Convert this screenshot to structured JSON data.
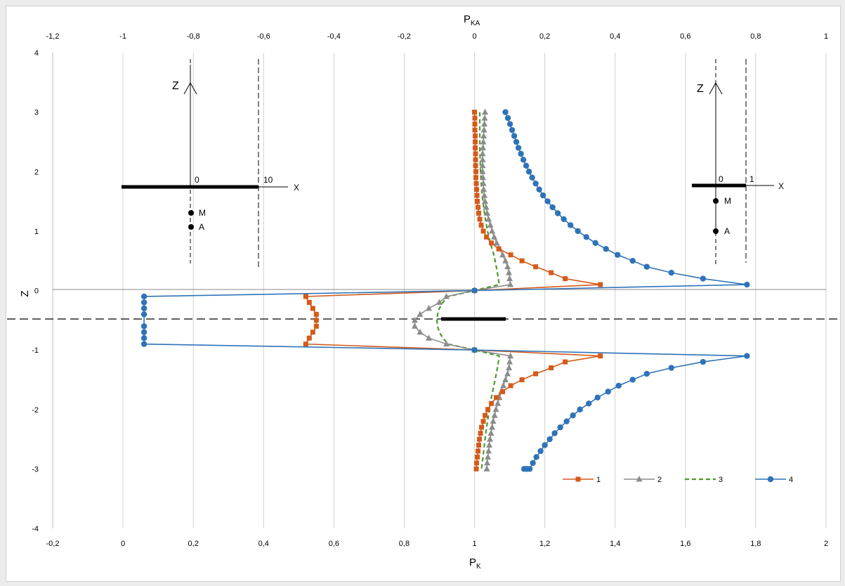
{
  "chart_data": {
    "type": "line",
    "x_bottom": {
      "label": "P",
      "label_sub": "K",
      "range": [
        -0.2,
        2.0
      ],
      "ticks": [
        "-0,2",
        "0",
        "0,2",
        "0,4",
        "0,6",
        "0,8",
        "1",
        "1,2",
        "1,4",
        "1,6",
        "1,8",
        "2"
      ]
    },
    "x_top": {
      "label": "P",
      "label_sub": "KA",
      "range": [
        -1.2,
        1.0
      ],
      "ticks": [
        "-1,2",
        "-1",
        "-0,8",
        "-0,6",
        "-0,4",
        "-0,2",
        "0",
        "0,2",
        "0,4",
        "0,6",
        "0,8",
        "1"
      ]
    },
    "y": {
      "label": "Z",
      "range": [
        -4,
        4
      ],
      "ticks": [
        "-4",
        "-3",
        "-2",
        "-1",
        "0",
        "1",
        "2",
        "3",
        "4"
      ]
    },
    "grid": "vertical",
    "legend_position": "bottom-right",
    "colors": {
      "s1": "#d45a1b",
      "s2": "#8c8c8c",
      "s3": "#4d9a2a",
      "s4": "#2e73b8"
    },
    "series": [
      {
        "name": "1",
        "marker": "square",
        "axis": "bottom",
        "points": [
          [
            1.0,
            3.0
          ],
          [
            1.001,
            2.9
          ],
          [
            1.001,
            2.8
          ],
          [
            1.001,
            2.7
          ],
          [
            1.002,
            2.6
          ],
          [
            1.002,
            2.5
          ],
          [
            1.002,
            2.4
          ],
          [
            1.003,
            2.3
          ],
          [
            1.003,
            2.2
          ],
          [
            1.003,
            2.1
          ],
          [
            1.004,
            2.0
          ],
          [
            1.004,
            1.9
          ],
          [
            1.005,
            1.8
          ],
          [
            1.006,
            1.7
          ],
          [
            1.007,
            1.6
          ],
          [
            1.008,
            1.5
          ],
          [
            1.01,
            1.4
          ],
          [
            1.012,
            1.3
          ],
          [
            1.015,
            1.2
          ],
          [
            1.019,
            1.1
          ],
          [
            1.025,
            1.0
          ],
          [
            1.034,
            0.9
          ],
          [
            1.048,
            0.8
          ],
          [
            1.069,
            0.7
          ],
          [
            1.103,
            0.6
          ],
          [
            1.135,
            0.5
          ],
          [
            1.174,
            0.4
          ],
          [
            1.218,
            0.3
          ],
          [
            1.258,
            0.2
          ],
          [
            1.358,
            0.1
          ],
          [
            1.0,
            0.0
          ],
          [
            0.52,
            -0.1
          ],
          [
            0.53,
            -0.2
          ],
          [
            0.54,
            -0.3
          ],
          [
            0.55,
            -0.4
          ],
          [
            0.55,
            -0.5
          ],
          [
            0.55,
            -0.6
          ],
          [
            0.54,
            -0.7
          ],
          [
            0.53,
            -0.8
          ],
          [
            0.52,
            -0.9
          ],
          [
            1.0,
            -1.0
          ],
          [
            1.358,
            -1.1
          ],
          [
            1.258,
            -1.2
          ],
          [
            1.218,
            -1.3
          ],
          [
            1.174,
            -1.4
          ],
          [
            1.135,
            -1.5
          ],
          [
            1.103,
            -1.6
          ],
          [
            1.08,
            -1.7
          ],
          [
            1.062,
            -1.8
          ],
          [
            1.048,
            -1.9
          ],
          [
            1.038,
            -2.0
          ],
          [
            1.03,
            -2.1
          ],
          [
            1.025,
            -2.2
          ],
          [
            1.02,
            -2.3
          ],
          [
            1.017,
            -2.4
          ],
          [
            1.014,
            -2.5
          ],
          [
            1.012,
            -2.6
          ],
          [
            1.01,
            -2.7
          ],
          [
            1.008,
            -2.8
          ],
          [
            1.006,
            -2.9
          ],
          [
            1.005,
            -3.0
          ]
        ]
      },
      {
        "name": "2",
        "marker": "triangle",
        "axis": "bottom",
        "points": [
          [
            1.03,
            3.0
          ],
          [
            1.029,
            2.9
          ],
          [
            1.028,
            2.8
          ],
          [
            1.027,
            2.7
          ],
          [
            1.026,
            2.6
          ],
          [
            1.025,
            2.5
          ],
          [
            1.024,
            2.4
          ],
          [
            1.023,
            2.3
          ],
          [
            1.023,
            2.2
          ],
          [
            1.023,
            2.1
          ],
          [
            1.023,
            2.0
          ],
          [
            1.024,
            1.9
          ],
          [
            1.025,
            1.8
          ],
          [
            1.026,
            1.7
          ],
          [
            1.028,
            1.6
          ],
          [
            1.03,
            1.5
          ],
          [
            1.033,
            1.4
          ],
          [
            1.036,
            1.3
          ],
          [
            1.04,
            1.2
          ],
          [
            1.045,
            1.1
          ],
          [
            1.05,
            1.0
          ],
          [
            1.056,
            0.9
          ],
          [
            1.063,
            0.8
          ],
          [
            1.072,
            0.7
          ],
          [
            1.08,
            0.6
          ],
          [
            1.088,
            0.5
          ],
          [
            1.094,
            0.4
          ],
          [
            1.098,
            0.3
          ],
          [
            1.1,
            0.2
          ],
          [
            1.102,
            0.1
          ],
          [
            1.0,
            0.0
          ],
          [
            0.92,
            -0.1
          ],
          [
            0.9,
            -0.2
          ],
          [
            0.87,
            -0.3
          ],
          [
            0.845,
            -0.4
          ],
          [
            0.83,
            -0.5
          ],
          [
            0.83,
            -0.6
          ],
          [
            0.845,
            -0.7
          ],
          [
            0.87,
            -0.8
          ],
          [
            0.92,
            -0.9
          ],
          [
            1.0,
            -1.0
          ],
          [
            1.102,
            -1.1
          ],
          [
            1.1,
            -1.2
          ],
          [
            1.098,
            -1.3
          ],
          [
            1.094,
            -1.4
          ],
          [
            1.088,
            -1.5
          ],
          [
            1.082,
            -1.6
          ],
          [
            1.076,
            -1.7
          ],
          [
            1.071,
            -1.8
          ],
          [
            1.066,
            -1.9
          ],
          [
            1.061,
            -2.0
          ],
          [
            1.057,
            -2.1
          ],
          [
            1.053,
            -2.2
          ],
          [
            1.05,
            -2.3
          ],
          [
            1.047,
            -2.4
          ],
          [
            1.044,
            -2.5
          ],
          [
            1.042,
            -2.6
          ],
          [
            1.04,
            -2.7
          ],
          [
            1.038,
            -2.8
          ],
          [
            1.036,
            -2.9
          ],
          [
            1.035,
            -3.0
          ]
        ]
      },
      {
        "name": "3",
        "marker": "dash",
        "axis": "bottom",
        "points": [
          [
            1.015,
            3.0
          ],
          [
            1.015,
            2.8
          ],
          [
            1.015,
            2.6
          ],
          [
            1.015,
            2.4
          ],
          [
            1.016,
            2.2
          ],
          [
            1.017,
            2.0
          ],
          [
            1.019,
            1.8
          ],
          [
            1.022,
            1.6
          ],
          [
            1.026,
            1.4
          ],
          [
            1.031,
            1.2
          ],
          [
            1.037,
            1.0
          ],
          [
            1.045,
            0.8
          ],
          [
            1.055,
            0.6
          ],
          [
            1.062,
            0.4
          ],
          [
            1.068,
            0.2
          ],
          [
            1.07,
            0.1
          ],
          [
            1.0,
            0.0
          ],
          [
            0.925,
            -0.1
          ],
          [
            0.91,
            -0.2
          ],
          [
            0.9,
            -0.3
          ],
          [
            0.895,
            -0.4
          ],
          [
            0.893,
            -0.5
          ],
          [
            0.895,
            -0.6
          ],
          [
            0.9,
            -0.7
          ],
          [
            0.91,
            -0.8
          ],
          [
            0.925,
            -0.9
          ],
          [
            1.0,
            -1.0
          ],
          [
            1.07,
            -1.1
          ],
          [
            1.068,
            -1.2
          ],
          [
            1.062,
            -1.4
          ],
          [
            1.055,
            -1.6
          ],
          [
            1.048,
            -1.8
          ],
          [
            1.042,
            -2.0
          ],
          [
            1.037,
            -2.2
          ],
          [
            1.032,
            -2.4
          ],
          [
            1.028,
            -2.6
          ],
          [
            1.024,
            -2.8
          ],
          [
            1.02,
            -3.0
          ]
        ]
      },
      {
        "name": "4",
        "marker": "circle",
        "axis": "bottom",
        "points": [
          [
            1.088,
            3.0
          ],
          [
            1.095,
            2.9
          ],
          [
            1.101,
            2.8
          ],
          [
            1.107,
            2.7
          ],
          [
            1.113,
            2.6
          ],
          [
            1.119,
            2.5
          ],
          [
            1.125,
            2.4
          ],
          [
            1.132,
            2.3
          ],
          [
            1.139,
            2.2
          ],
          [
            1.147,
            2.1
          ],
          [
            1.155,
            2.0
          ],
          [
            1.164,
            1.9
          ],
          [
            1.174,
            1.8
          ],
          [
            1.184,
            1.7
          ],
          [
            1.195,
            1.6
          ],
          [
            1.208,
            1.5
          ],
          [
            1.222,
            1.4
          ],
          [
            1.237,
            1.3
          ],
          [
            1.254,
            1.2
          ],
          [
            1.273,
            1.1
          ],
          [
            1.294,
            1.0
          ],
          [
            1.318,
            0.9
          ],
          [
            1.344,
            0.8
          ],
          [
            1.374,
            0.7
          ],
          [
            1.407,
            0.6
          ],
          [
            1.45,
            0.5
          ],
          [
            1.49,
            0.4
          ],
          [
            1.56,
            0.3
          ],
          [
            1.65,
            0.2
          ],
          [
            1.775,
            0.1
          ],
          [
            1.0,
            0.0
          ],
          [
            0.06,
            -0.1
          ],
          [
            0.06,
            -0.2
          ],
          [
            0.06,
            -0.3
          ],
          [
            0.06,
            -0.4
          ],
          [
            0.06,
            -0.6
          ],
          [
            0.06,
            -0.7
          ],
          [
            0.06,
            -0.8
          ],
          [
            0.06,
            -0.9
          ],
          [
            1.0,
            -1.0
          ],
          [
            1.775,
            -1.1
          ],
          [
            1.65,
            -1.2
          ],
          [
            1.56,
            -1.3
          ],
          [
            1.49,
            -1.4
          ],
          [
            1.45,
            -1.5
          ],
          [
            1.41,
            -1.6
          ],
          [
            1.38,
            -1.7
          ],
          [
            1.35,
            -1.8
          ],
          [
            1.325,
            -1.9
          ],
          [
            1.3,
            -2.0
          ],
          [
            1.28,
            -2.1
          ],
          [
            1.262,
            -2.2
          ],
          [
            1.244,
            -2.3
          ],
          [
            1.228,
            -2.4
          ],
          [
            1.214,
            -2.5
          ],
          [
            1.2,
            -2.6
          ],
          [
            1.188,
            -2.7
          ],
          [
            1.176,
            -2.8
          ],
          [
            1.166,
            -2.9
          ],
          [
            1.157,
            -3.0
          ],
          [
            1.149,
            -3.0
          ],
          [
            1.141,
            -3.0
          ]
        ]
      }
    ]
  },
  "insets": {
    "left": {
      "axis_z": "Z",
      "axis_x": "X",
      "origin": "0",
      "end": "10",
      "point_m": "M",
      "point_a": "A"
    },
    "right": {
      "axis_z": "Z",
      "axis_x": "X",
      "origin": "0",
      "end": "1",
      "point_m": "M",
      "point_a": "A"
    }
  }
}
